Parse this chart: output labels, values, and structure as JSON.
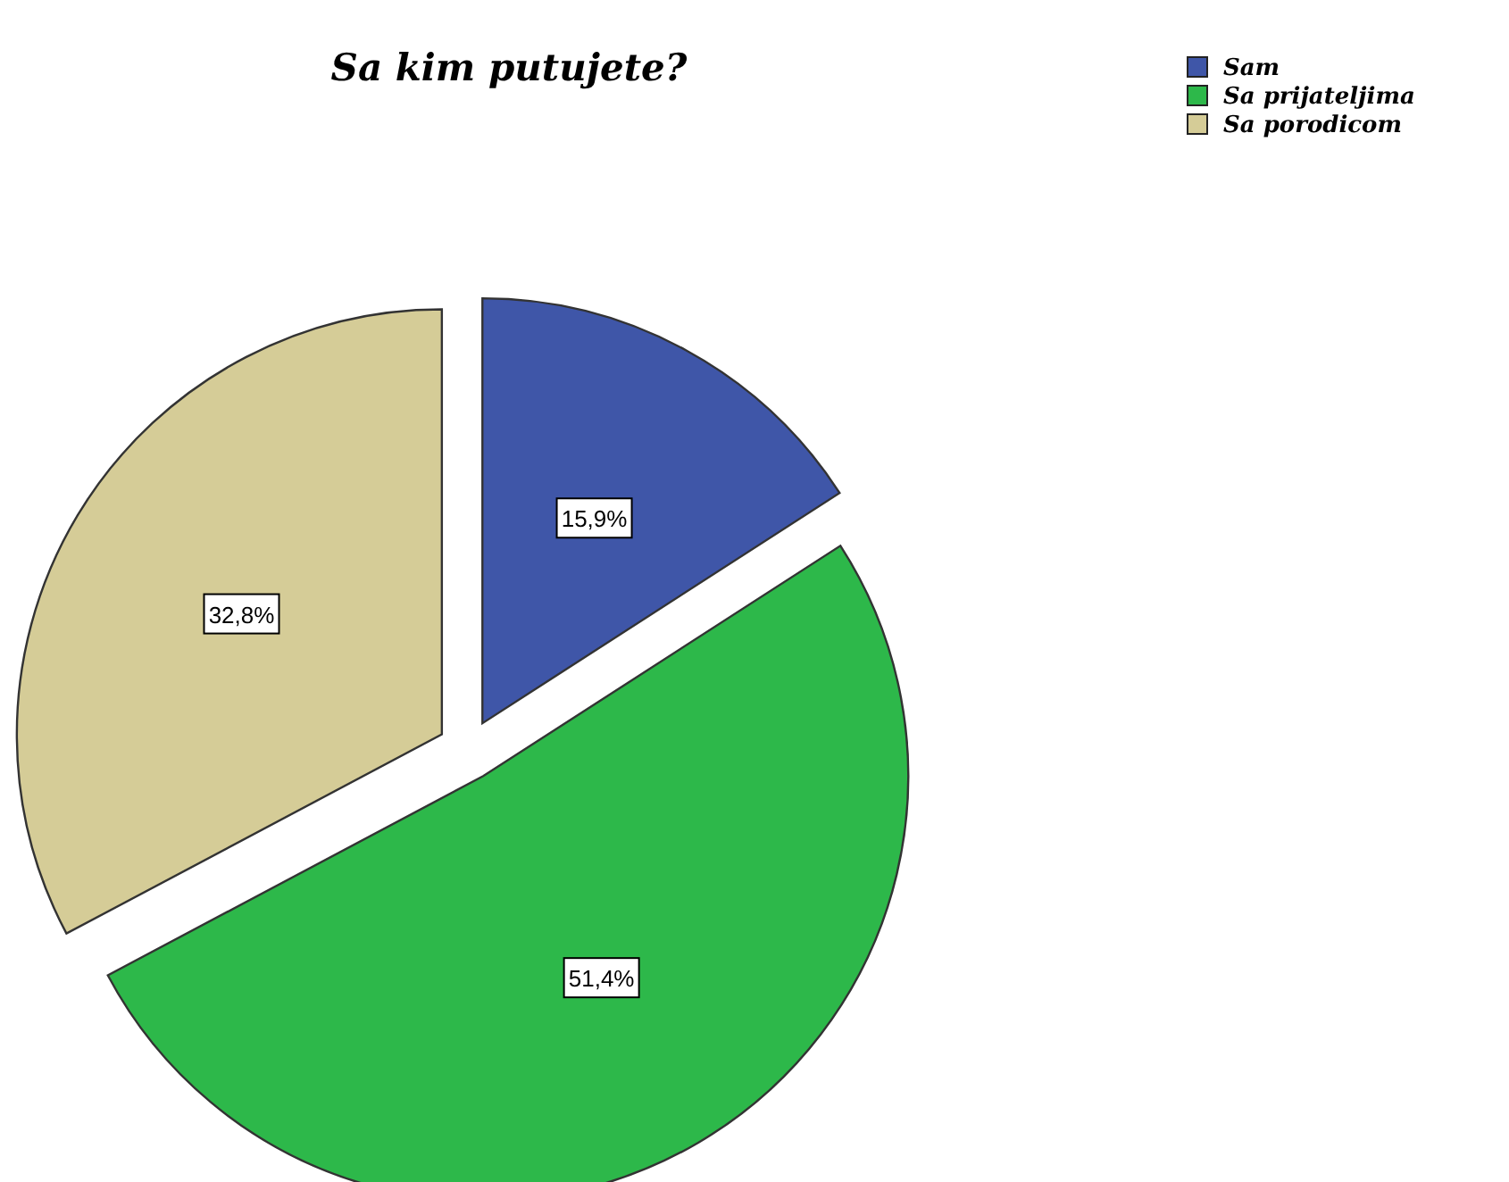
{
  "chart_data": {
    "type": "pie",
    "title": "Sa kim putujete?",
    "categories": [
      "Sam",
      "Sa prijateljima",
      "Sa porodicom"
    ],
    "values": [
      15.9,
      51.4,
      32.8
    ],
    "colors": [
      "#3f56a8",
      "#2db84a",
      "#d5cc97"
    ],
    "value_labels": [
      "15,9%",
      "51,4%",
      "32,8%"
    ],
    "legend": "top right"
  }
}
